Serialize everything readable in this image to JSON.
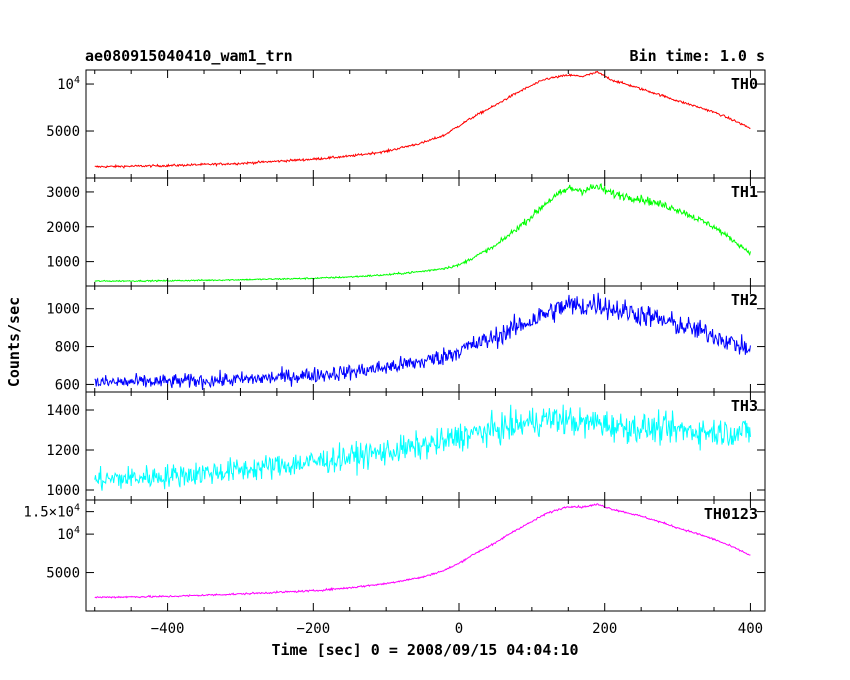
{
  "header": {
    "title": "ae080915040410_wam1_trn",
    "bin_time": "Bin time: 1.0 s"
  },
  "axes": {
    "xlabel": "Time [sec] 0 = 2008/09/15 04:04:10",
    "ylabel": "Counts/sec",
    "x_ticks": [
      "−400",
      "−200",
      "0",
      "200",
      "400"
    ]
  },
  "chart_data": [
    {
      "type": "line",
      "name": "TH0",
      "color": "#ff0000",
      "xlim": [
        -512,
        420
      ],
      "ylim": [
        2500,
        12300
      ],
      "yscale": "log",
      "yticks": [
        {
          "v": 5000,
          "label": "5000"
        },
        {
          "v": 10000,
          "label": "10^4"
        }
      ],
      "x": [
        -500,
        -400,
        -300,
        -200,
        -150,
        -100,
        -50,
        -20,
        0,
        50,
        100,
        120,
        150,
        170,
        190,
        210,
        250,
        300,
        350,
        400
      ],
      "y": [
        2950,
        3000,
        3100,
        3300,
        3450,
        3700,
        4200,
        4700,
        5400,
        7300,
        9800,
        10800,
        11400,
        11200,
        11900,
        10600,
        9300,
        7800,
        6600,
        5200
      ],
      "noise": 0.012
    },
    {
      "type": "line",
      "name": "TH1",
      "color": "#00ff00",
      "xlim": [
        -512,
        420
      ],
      "ylim": [
        300,
        3400
      ],
      "yscale": "linear",
      "yticks": [
        {
          "v": 1000,
          "label": "1000"
        },
        {
          "v": 2000,
          "label": "2000"
        },
        {
          "v": 3000,
          "label": "3000"
        }
      ],
      "x": [
        -500,
        -400,
        -300,
        -200,
        -150,
        -100,
        -50,
        -20,
        0,
        50,
        100,
        120,
        150,
        170,
        190,
        210,
        250,
        300,
        350,
        400
      ],
      "y": [
        440,
        450,
        480,
        520,
        560,
        620,
        720,
        810,
        900,
        1450,
        2300,
        2700,
        3100,
        3050,
        3150,
        2950,
        2800,
        2500,
        2000,
        1250
      ],
      "noise": 0.03
    },
    {
      "type": "line",
      "name": "TH2",
      "color": "#0000ff",
      "xlim": [
        -512,
        420
      ],
      "ylim": [
        560,
        1120
      ],
      "yscale": "linear",
      "yticks": [
        {
          "v": 600,
          "label": "600"
        },
        {
          "v": 800,
          "label": "800"
        },
        {
          "v": 1000,
          "label": "1000"
        }
      ],
      "x": [
        -500,
        -400,
        -300,
        -200,
        -150,
        -100,
        -50,
        -20,
        0,
        50,
        100,
        120,
        150,
        170,
        190,
        210,
        250,
        300,
        350,
        400
      ],
      "y": [
        610,
        615,
        625,
        650,
        665,
        690,
        720,
        750,
        780,
        850,
        940,
        975,
        1020,
        1010,
        1030,
        1000,
        970,
        915,
        860,
        780
      ],
      "noise": 0.045
    },
    {
      "type": "line",
      "name": "TH3",
      "color": "#00ffff",
      "xlim": [
        -512,
        420
      ],
      "ylim": [
        950,
        1490
      ],
      "yscale": "linear",
      "yticks": [
        {
          "v": 1000,
          "label": "1000"
        },
        {
          "v": 1200,
          "label": "1200"
        },
        {
          "v": 1400,
          "label": "1400"
        }
      ],
      "x": [
        -500,
        -400,
        -300,
        -200,
        -150,
        -100,
        -50,
        -20,
        0,
        50,
        100,
        120,
        150,
        170,
        190,
        210,
        250,
        300,
        350,
        400
      ],
      "y": [
        1050,
        1070,
        1100,
        1140,
        1165,
        1190,
        1220,
        1240,
        1270,
        1300,
        1340,
        1355,
        1350,
        1330,
        1340,
        1320,
        1310,
        1300,
        1290,
        1290
      ],
      "noise": 0.04
    },
    {
      "type": "line",
      "name": "TH0123",
      "color": "#ff00ff",
      "xlim": [
        -512,
        420
      ],
      "ylim": [
        2500,
        18500
      ],
      "yscale": "log",
      "yticks": [
        {
          "v": 5000,
          "label": "5000"
        },
        {
          "v": 10000,
          "label": "10^4"
        },
        {
          "v": 15000,
          "label": "1.5×10^4"
        }
      ],
      "x": [
        -500,
        -400,
        -300,
        -200,
        -150,
        -100,
        -50,
        -20,
        0,
        50,
        100,
        120,
        150,
        170,
        190,
        210,
        250,
        300,
        350,
        400
      ],
      "y": [
        3200,
        3250,
        3400,
        3600,
        3800,
        4100,
        4600,
        5200,
        5900,
        8500,
        12500,
        14500,
        16500,
        16300,
        17100,
        15700,
        13800,
        11200,
        9100,
        6800
      ],
      "noise": 0.012
    }
  ]
}
